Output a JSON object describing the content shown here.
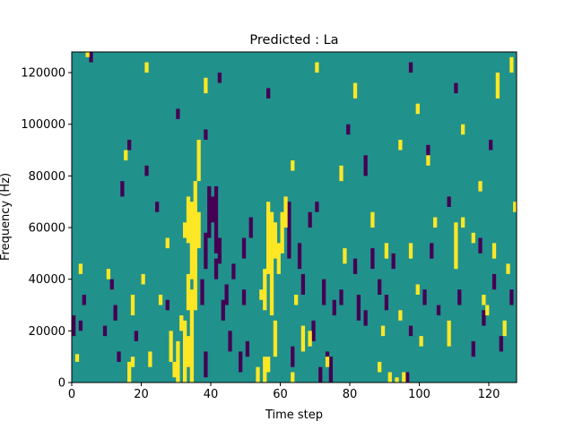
{
  "chart_data": {
    "type": "heatmap",
    "title": "Predicted : La",
    "xlabel": "Time step",
    "ylabel": "Frequency (Hz)",
    "xlim": [
      0,
      128
    ],
    "ylim": [
      0,
      128000
    ],
    "x_ticks": [
      0,
      20,
      40,
      60,
      80,
      100,
      120
    ],
    "y_ticks": [
      0,
      20000,
      40000,
      60000,
      80000,
      100000,
      120000
    ],
    "x_tick_labels": [
      "0",
      "20",
      "40",
      "60",
      "80",
      "100",
      "120"
    ],
    "y_tick_labels": [
      "0",
      "20000",
      "40000",
      "60000",
      "80000",
      "100000",
      "120000"
    ],
    "grid_size": [
      128,
      128
    ],
    "background_value": 0,
    "colors": {
      "low": "#440154",
      "mid": "#21918c",
      "high": "#fde725"
    },
    "high_runs": [
      [
        1,
        0,
        8000,
        11000
      ],
      [
        2,
        0,
        42000,
        46000
      ],
      [
        4,
        0,
        126000,
        128000
      ],
      [
        10,
        0,
        40000,
        44000
      ],
      [
        15,
        0,
        86000,
        90000
      ],
      [
        16,
        0,
        0,
        8000
      ],
      [
        17,
        0,
        6000,
        10000
      ],
      [
        17,
        0,
        26000,
        34000
      ],
      [
        20,
        0,
        38000,
        42000
      ],
      [
        22,
        0,
        6000,
        12000
      ],
      [
        25,
        0,
        30000,
        34000
      ],
      [
        27,
        0,
        52000,
        56000
      ],
      [
        28,
        0,
        8000,
        20000
      ],
      [
        29,
        0,
        2000,
        8000
      ],
      [
        30,
        0,
        0,
        16000
      ],
      [
        31,
        0,
        20000,
        26000
      ],
      [
        32,
        0,
        0,
        24000
      ],
      [
        32,
        0,
        56000,
        62000
      ],
      [
        33,
        0,
        6000,
        18000
      ],
      [
        33,
        0,
        28000,
        42000
      ],
      [
        33,
        0,
        54000,
        72000
      ],
      [
        34,
        0,
        0,
        36000
      ],
      [
        34,
        0,
        40000,
        70000
      ],
      [
        35,
        0,
        28000,
        78000
      ],
      [
        36,
        0,
        52000,
        66000
      ],
      [
        36,
        0,
        78000,
        94000
      ],
      [
        53,
        0,
        0,
        6000
      ],
      [
        54,
        0,
        32000,
        36000
      ],
      [
        55,
        0,
        0,
        10000
      ],
      [
        55,
        0,
        28000,
        44000
      ],
      [
        56,
        0,
        42000,
        70000
      ],
      [
        56,
        0,
        4000,
        10000
      ],
      [
        57,
        0,
        26000,
        66000
      ],
      [
        58,
        0,
        10000,
        24000
      ],
      [
        58,
        0,
        48000,
        62000
      ],
      [
        59,
        0,
        42000,
        54000
      ],
      [
        60,
        0,
        50000,
        66000
      ],
      [
        61,
        0,
        60000,
        72000
      ],
      [
        63,
        0,
        0,
        4000
      ],
      [
        64,
        0,
        30000,
        34000
      ],
      [
        66,
        0,
        12000,
        22000
      ],
      [
        68,
        0,
        14000,
        20000
      ],
      [
        73,
        0,
        6000,
        10000
      ],
      [
        78,
        0,
        46000,
        52000
      ],
      [
        86,
        0,
        60000,
        66000
      ],
      [
        88,
        0,
        4000,
        8000
      ],
      [
        89,
        0,
        18000,
        22000
      ],
      [
        90,
        0,
        48000,
        54000
      ],
      [
        91,
        0,
        0,
        4000
      ],
      [
        93,
        0,
        0,
        2000
      ],
      [
        94,
        0,
        24000,
        28000
      ],
      [
        95,
        0,
        0,
        4000
      ],
      [
        97,
        0,
        48000,
        54000
      ],
      [
        99,
        0,
        34000,
        38000
      ],
      [
        100,
        0,
        14000,
        18000
      ],
      [
        102,
        0,
        84000,
        88000
      ],
      [
        104,
        0,
        60000,
        64000
      ],
      [
        108,
        0,
        14000,
        24000
      ],
      [
        110,
        0,
        44000,
        62000
      ],
      [
        112,
        0,
        60000,
        64000
      ],
      [
        115,
        0,
        54000,
        58000
      ],
      [
        117,
        0,
        74000,
        78000
      ],
      [
        118,
        0,
        30000,
        34000
      ],
      [
        119,
        0,
        26000,
        30000
      ],
      [
        121,
        0,
        48000,
        54000
      ],
      [
        122,
        0,
        110000,
        120000
      ],
      [
        124,
        0,
        18000,
        24000
      ],
      [
        125,
        0,
        42000,
        46000
      ],
      [
        126,
        0,
        120000,
        126000
      ],
      [
        127,
        0,
        66000,
        70000
      ],
      [
        21,
        0,
        120000,
        124000
      ],
      [
        38,
        0,
        112000,
        118000
      ],
      [
        63,
        0,
        82000,
        86000
      ],
      [
        70,
        0,
        120000,
        124000
      ],
      [
        77,
        0,
        78000,
        84000
      ],
      [
        81,
        0,
        110000,
        116000
      ],
      [
        94,
        0,
        90000,
        94000
      ],
      [
        99,
        0,
        104000,
        108000
      ],
      [
        112,
        0,
        96000,
        100000
      ]
    ],
    "low_runs": [
      [
        0,
        0,
        18000,
        26000
      ],
      [
        2,
        0,
        20000,
        24000
      ],
      [
        3,
        0,
        30000,
        34000
      ],
      [
        5,
        0,
        124000,
        128000
      ],
      [
        9,
        0,
        18000,
        22000
      ],
      [
        11,
        0,
        36000,
        40000
      ],
      [
        12,
        0,
        24000,
        30000
      ],
      [
        13,
        0,
        8000,
        12000
      ],
      [
        14,
        0,
        72000,
        78000
      ],
      [
        18,
        0,
        16000,
        20000
      ],
      [
        21,
        0,
        80000,
        84000
      ],
      [
        24,
        0,
        66000,
        70000
      ],
      [
        27,
        0,
        28000,
        32000
      ],
      [
        37,
        0,
        30000,
        40000
      ],
      [
        38,
        0,
        44000,
        58000
      ],
      [
        38,
        0,
        2000,
        12000
      ],
      [
        39,
        0,
        56000,
        76000
      ],
      [
        40,
        0,
        62000,
        72000
      ],
      [
        41,
        0,
        40000,
        48000
      ],
      [
        41,
        0,
        50000,
        76000
      ],
      [
        42,
        0,
        46000,
        56000
      ],
      [
        43,
        0,
        24000,
        32000
      ],
      [
        44,
        0,
        30000,
        38000
      ],
      [
        45,
        0,
        12000,
        20000
      ],
      [
        46,
        0,
        40000,
        46000
      ],
      [
        48,
        0,
        4000,
        12000
      ],
      [
        49,
        0,
        30000,
        36000
      ],
      [
        49,
        0,
        48000,
        56000
      ],
      [
        50,
        0,
        10000,
        16000
      ],
      [
        51,
        0,
        56000,
        64000
      ],
      [
        62,
        0,
        48000,
        70000
      ],
      [
        63,
        0,
        6000,
        14000
      ],
      [
        65,
        0,
        44000,
        54000
      ],
      [
        66,
        0,
        34000,
        42000
      ],
      [
        68,
        0,
        60000,
        66000
      ],
      [
        69,
        0,
        16000,
        24000
      ],
      [
        71,
        0,
        0,
        6000
      ],
      [
        72,
        0,
        30000,
        40000
      ],
      [
        73,
        0,
        8000,
        12000
      ],
      [
        74,
        0,
        0,
        10000
      ],
      [
        75,
        0,
        26000,
        32000
      ],
      [
        77,
        0,
        30000,
        36000
      ],
      [
        81,
        0,
        42000,
        48000
      ],
      [
        82,
        0,
        24000,
        34000
      ],
      [
        84,
        0,
        22000,
        28000
      ],
      [
        84,
        0,
        80000,
        88000
      ],
      [
        86,
        0,
        44000,
        52000
      ],
      [
        88,
        0,
        34000,
        40000
      ],
      [
        90,
        0,
        28000,
        34000
      ],
      [
        92,
        0,
        44000,
        50000
      ],
      [
        96,
        0,
        0,
        4000
      ],
      [
        97,
        0,
        18000,
        22000
      ],
      [
        101,
        0,
        30000,
        36000
      ],
      [
        103,
        0,
        48000,
        54000
      ],
      [
        105,
        0,
        26000,
        30000
      ],
      [
        108,
        0,
        68000,
        72000
      ],
      [
        111,
        0,
        30000,
        36000
      ],
      [
        115,
        0,
        10000,
        16000
      ],
      [
        117,
        0,
        50000,
        56000
      ],
      [
        118,
        0,
        22000,
        28000
      ],
      [
        121,
        0,
        36000,
        42000
      ],
      [
        123,
        0,
        12000,
        18000
      ],
      [
        126,
        0,
        30000,
        36000
      ],
      [
        16,
        0,
        90000,
        94000
      ],
      [
        30,
        0,
        102000,
        106000
      ],
      [
        38,
        0,
        94000,
        98000
      ],
      [
        42,
        0,
        116000,
        120000
      ],
      [
        56,
        0,
        110000,
        114000
      ],
      [
        70,
        0,
        66000,
        70000
      ],
      [
        79,
        0,
        96000,
        100000
      ],
      [
        97,
        0,
        120000,
        124000
      ],
      [
        102,
        0,
        88000,
        92000
      ],
      [
        110,
        0,
        112000,
        116000
      ],
      [
        120,
        0,
        90000,
        94000
      ]
    ],
    "colorbar": false,
    "legend": "none"
  }
}
